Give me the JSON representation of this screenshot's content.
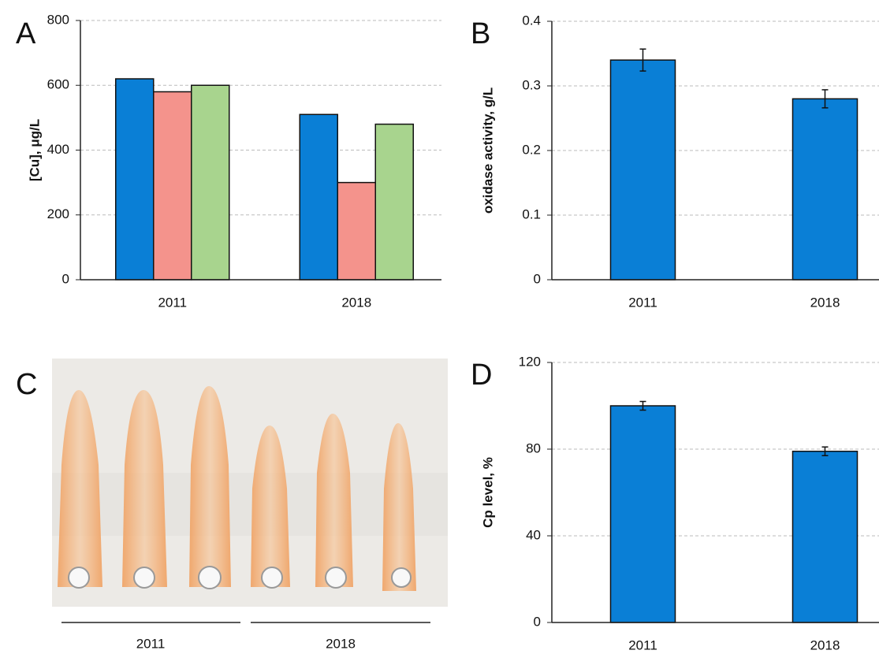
{
  "chart_data": [
    {
      "type": "bar",
      "panel_label": "A",
      "ylabel": "[Cu], μg/L",
      "categories": [
        "2011",
        "2018"
      ],
      "series": [
        {
          "color": "#0a7fd6",
          "values": [
            620,
            510
          ]
        },
        {
          "color": "#f4938c",
          "values": [
            580,
            300
          ]
        },
        {
          "color": "#a8d48e",
          "values": [
            600,
            480
          ]
        }
      ],
      "ylim": [
        0,
        800
      ],
      "yticks": [
        0,
        200,
        400,
        600,
        800
      ],
      "grid": true
    },
    {
      "type": "bar",
      "panel_label": "B",
      "ylabel": "oxidase activity, g/L",
      "categories": [
        "2011",
        "2018"
      ],
      "series": [
        {
          "color": "#0a7fd6",
          "values": [
            0.34,
            0.28
          ],
          "errors": [
            0.017,
            0.014
          ]
        }
      ],
      "ylim": [
        0,
        0.4
      ],
      "yticks": [
        0,
        0.1,
        0.2,
        0.3,
        0.4
      ],
      "grid": true
    },
    {
      "type": "bar",
      "panel_label": "D",
      "ylabel": "Cp level, %",
      "categories": [
        "2011",
        "2018"
      ],
      "series": [
        {
          "color": "#0a7fd6",
          "values": [
            100,
            79
          ],
          "errors": [
            2,
            2
          ]
        }
      ],
      "ylim": [
        0,
        120
      ],
      "yticks": [
        0,
        40,
        80,
        120
      ],
      "grid": true
    }
  ],
  "image_panel": {
    "panel_label": "C",
    "groups": [
      "2011",
      "2018"
    ]
  }
}
